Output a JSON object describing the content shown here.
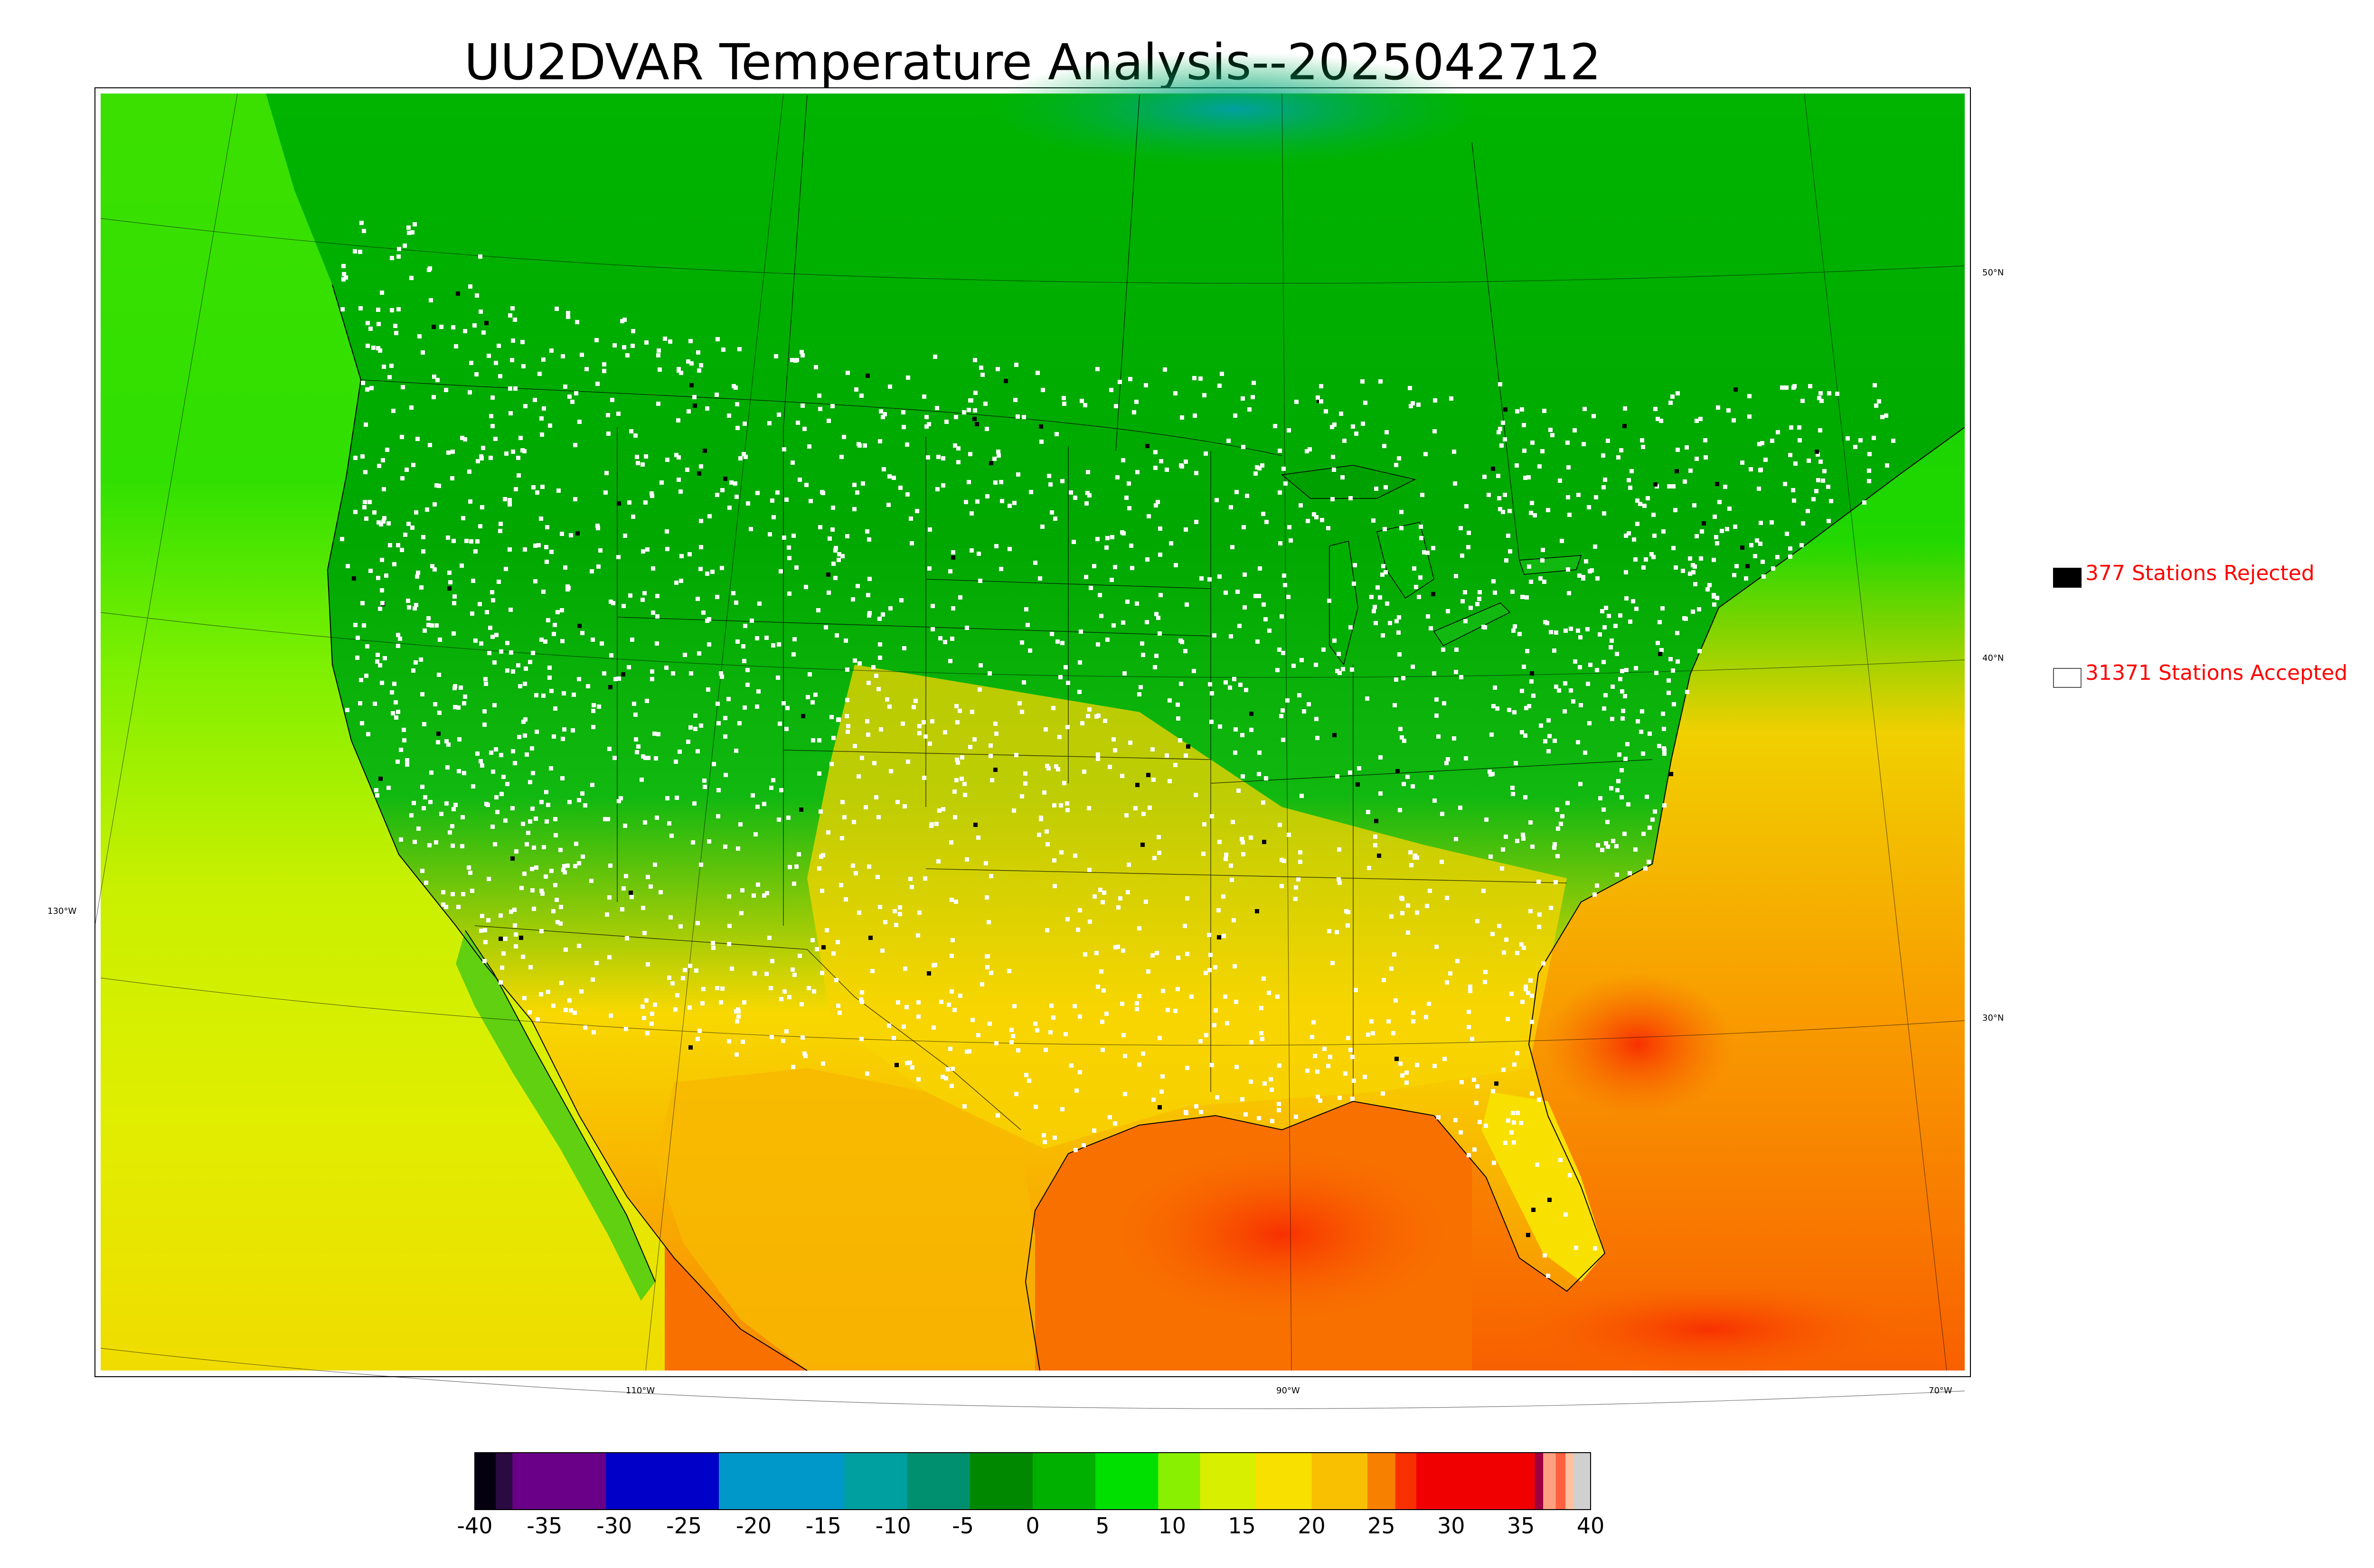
{
  "title": "UU2DVAR Temperature Analysis--2025042712",
  "legend": {
    "rejected_label": "377 Stations Rejected",
    "accepted_label": "31371 Stations Accepted",
    "rejected_color": "#000000",
    "accepted_color": "#ffffff",
    "text_color": "#ff0000"
  },
  "lon_labels": [
    "130°W",
    "110°W",
    "90°W",
    "70°W"
  ],
  "lat_labels": [
    "50°N",
    "40°N",
    "30°N"
  ],
  "colorbar": {
    "min": -40,
    "max": 40,
    "ticks": [
      "-40",
      "-35",
      "-30",
      "-25",
      "-20",
      "-15",
      "-10",
      "-5",
      "0",
      "5",
      "10",
      "15",
      "20",
      "25",
      "30",
      "35",
      "40"
    ],
    "bands": [
      {
        "from": -40,
        "to": -38.5,
        "color": "#05000f"
      },
      {
        "from": -38.5,
        "to": -37.3,
        "color": "#2a0a40"
      },
      {
        "from": -37.3,
        "to": -30.6,
        "color": "#6a0088"
      },
      {
        "from": -30.6,
        "to": -22.5,
        "color": "#0000c8"
      },
      {
        "from": -22.5,
        "to": -13.5,
        "color": "#0098c8"
      },
      {
        "from": -13.5,
        "to": -9,
        "color": "#00a0a0"
      },
      {
        "from": -9,
        "to": -4.5,
        "color": "#009070"
      },
      {
        "from": -4.5,
        "to": 0,
        "color": "#008800"
      },
      {
        "from": 0,
        "to": 4.5,
        "color": "#00b000"
      },
      {
        "from": 4.5,
        "to": 9,
        "color": "#00e000"
      },
      {
        "from": 9,
        "to": 12,
        "color": "#88f000"
      },
      {
        "from": 12,
        "to": 16,
        "color": "#d8f000"
      },
      {
        "from": 16,
        "to": 20,
        "color": "#f8e000"
      },
      {
        "from": 20,
        "to": 24,
        "color": "#f8c000"
      },
      {
        "from": 24,
        "to": 26,
        "color": "#f88000"
      },
      {
        "from": 26,
        "to": 27.5,
        "color": "#f83000"
      },
      {
        "from": 27.5,
        "to": 36,
        "color": "#f00000"
      },
      {
        "from": 36,
        "to": 36.6,
        "color": "#a00040"
      },
      {
        "from": 36.6,
        "to": 37.5,
        "color": "#ffa080"
      },
      {
        "from": 37.5,
        "to": 38.2,
        "color": "#ff6040"
      },
      {
        "from": 38.2,
        "to": 38.8,
        "color": "#ffc0a0"
      },
      {
        "from": 38.8,
        "to": 40,
        "color": "#d0d0d0"
      }
    ]
  }
}
